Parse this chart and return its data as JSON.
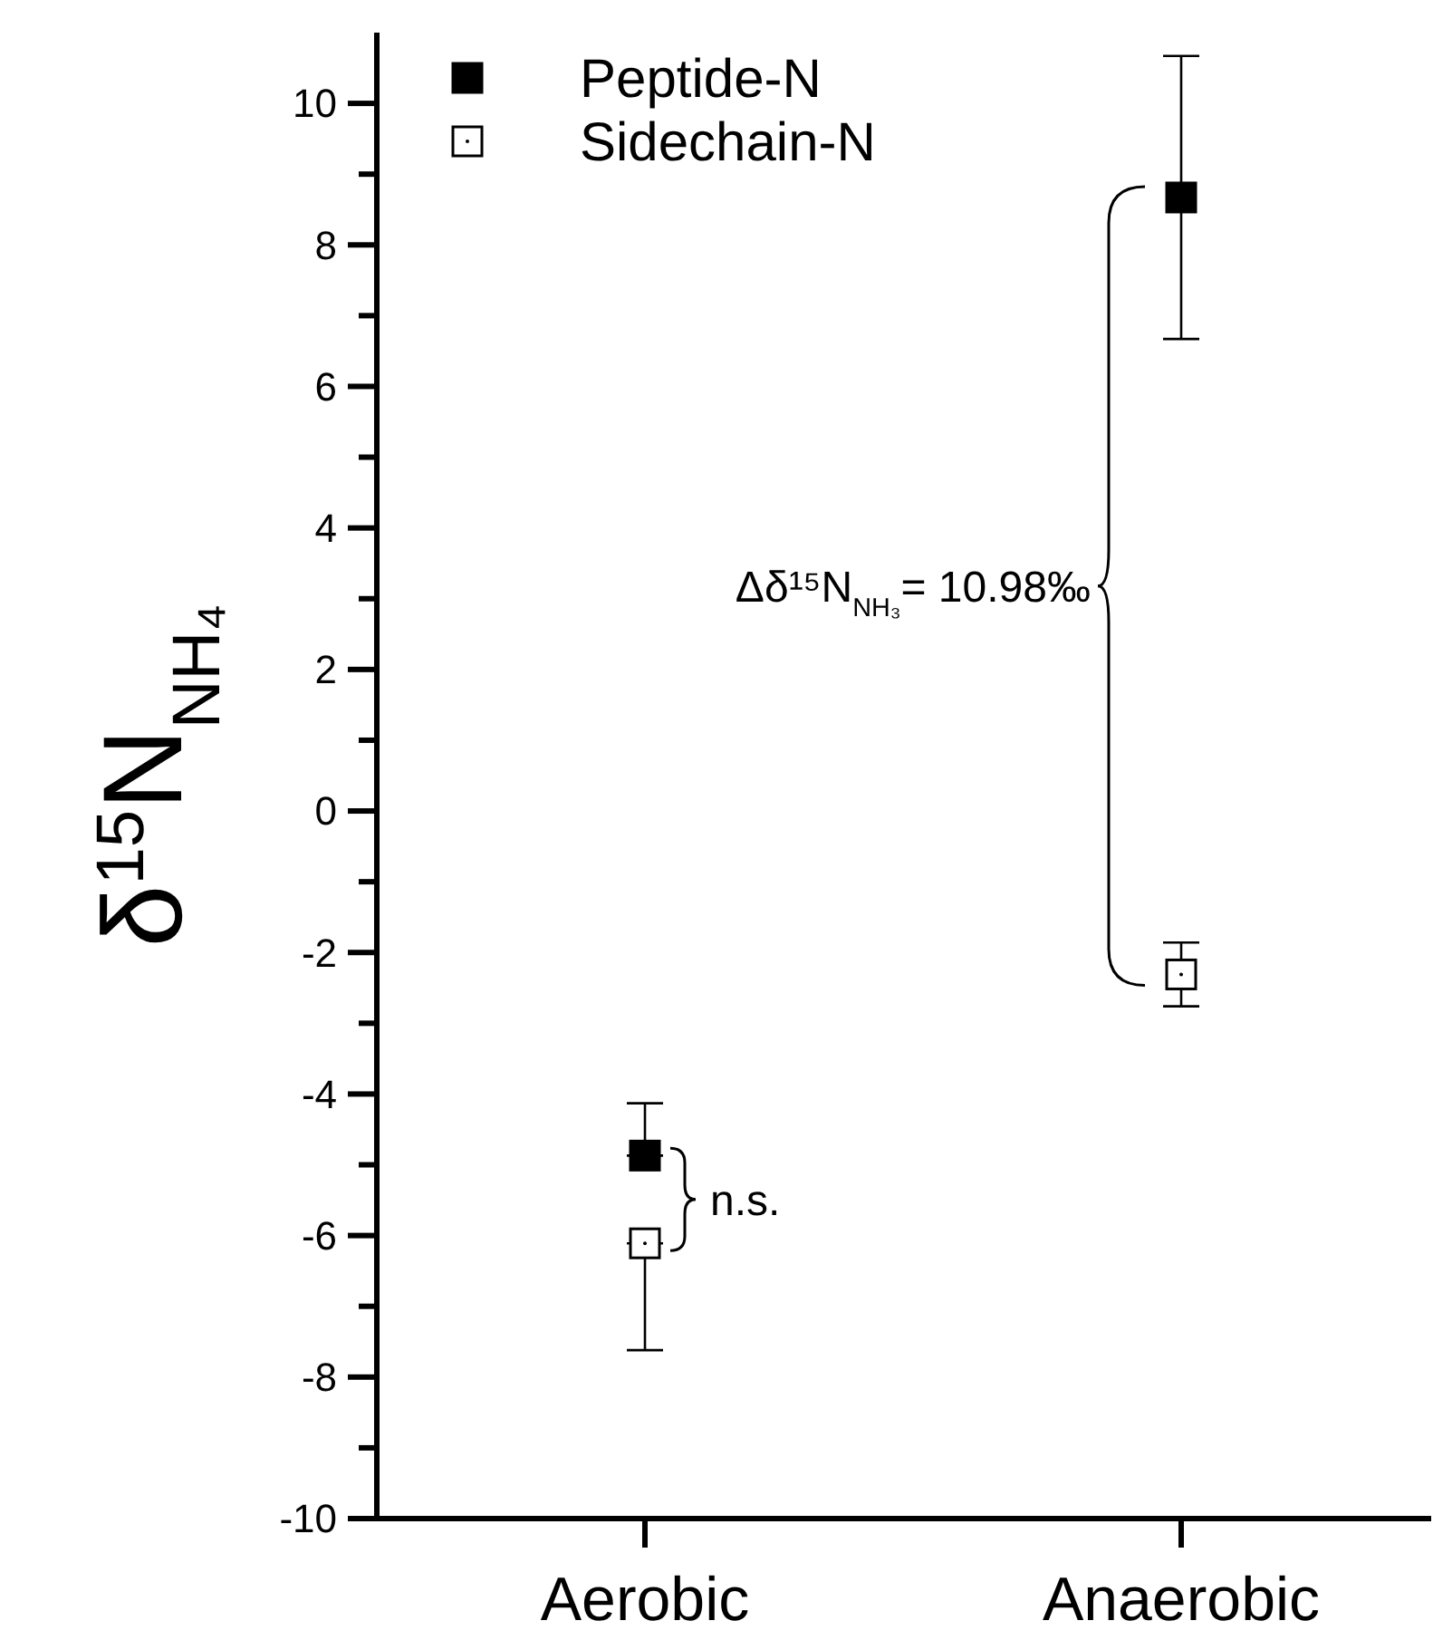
{
  "chart_data": {
    "type": "scatter",
    "ylabel": "δ$^{15}$N$_{NH₄}$",
    "categories": [
      "Aerobic",
      "Anaerobic"
    ],
    "series": [
      {
        "name": "Peptide-N",
        "color": "#000000",
        "marker": "square",
        "values": [
          -4.87,
          8.67
        ],
        "errors": [
          [
            -4.87,
            -4.13
          ],
          2.0
        ]
      },
      {
        "name": "Sidechain-N",
        "color": "#000000",
        "marker": "square",
        "values": [
          -6.11,
          -2.31
        ],
        "errors": [
          [
            -7.62,
            -6.11
          ],
          0.45
        ]
      }
    ],
    "ylim": [
      -10,
      11
    ],
    "yticks": [
      -10,
      {
        "value": -9,
        "label": null
      },
      -8,
      {
        "value": -7,
        "label": null
      },
      -6,
      {
        "value": -5,
        "label": null
      },
      -4,
      {
        "value": -3,
        "label": null
      },
      -2,
      {
        "value": -1,
        "label": null
      },
      0,
      {
        "value": 1,
        "label": null
      },
      2,
      {
        "value": 3,
        "label": null
      },
      4,
      {
        "value": 5,
        "label": null
      },
      6,
      {
        "value": 7,
        "label": null
      },
      8,
      {
        "value": 9,
        "label": null
      },
      10
    ],
    "annotations": [
      "n.s.",
      "Δδ¹⁵N$_{NH₃}$= 10.98‰"
    ],
    "legend": "top left",
    "grid": false
  }
}
